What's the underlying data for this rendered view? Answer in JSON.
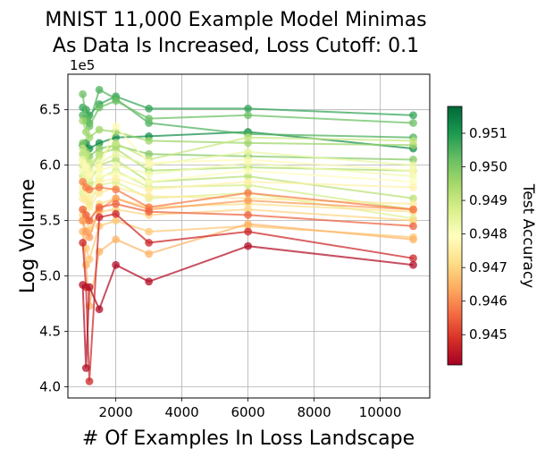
{
  "chart_data": {
    "type": "line",
    "title": [
      "MNIST 11,000 Example Model Minimas",
      "As Data Is Increased, Loss Cutoff: 0.1"
    ],
    "xlabel": "# Of Examples In Loss Landscape",
    "ylabel": "Log Volume",
    "y_offset_label": "1e5",
    "xlim": [
      550,
      11500
    ],
    "ylim": [
      3.9,
      6.82
    ],
    "x_ticks": [
      2000,
      4000,
      6000,
      8000,
      10000
    ],
    "x_tick_labels": [
      "2000",
      "4000",
      "6000",
      "8000",
      "10000"
    ],
    "y_ticks": [
      4.0,
      4.5,
      5.0,
      5.5,
      6.0,
      6.5
    ],
    "y_tick_labels": [
      "4.0",
      "4.5",
      "5.0",
      "5.5",
      "6.0",
      "6.5"
    ],
    "grid": true,
    "colorbar": {
      "label": "Test Accuracy",
      "range": [
        0.9441,
        0.9518
      ],
      "colormap": [
        "#a50026",
        "#d73027",
        "#f46d43",
        "#fdae61",
        "#fee08b",
        "#ffffbf",
        "#d9ef8b",
        "#a6d96a",
        "#66bd63",
        "#1a9850",
        "#006837"
      ],
      "ticks": [
        0.945,
        0.946,
        0.947,
        0.948,
        0.949,
        0.95,
        0.951
      ],
      "tick_labels": [
        "0.945",
        "0.946",
        "0.947",
        "0.948",
        "0.949",
        "0.950",
        "0.951"
      ]
    },
    "x": [
      1000,
      1100,
      1200,
      1500,
      2000,
      3000,
      6000,
      11000
    ],
    "series": [
      {
        "accuracy": 0.9512,
        "y": [
          6.18,
          6.2,
          6.15,
          6.2,
          6.25,
          6.26,
          6.3,
          6.15
        ]
      },
      {
        "accuracy": 0.9508,
        "y": [
          6.52,
          6.5,
          6.45,
          6.55,
          6.62,
          6.51,
          6.51,
          6.45
        ]
      },
      {
        "accuracy": 0.9505,
        "y": [
          6.45,
          6.42,
          6.38,
          6.68,
          6.6,
          6.38,
          6.28,
          6.25
        ]
      },
      {
        "accuracy": 0.9502,
        "y": [
          6.64,
          6.4,
          6.35,
          6.52,
          6.58,
          6.42,
          6.45,
          6.38
        ]
      },
      {
        "accuracy": 0.9499,
        "y": [
          6.2,
          6.12,
          6.08,
          6.15,
          6.18,
          6.1,
          6.08,
          6.05
        ]
      },
      {
        "accuracy": 0.9496,
        "y": [
          6.4,
          6.3,
          6.25,
          6.32,
          6.3,
          6.22,
          6.2,
          6.18
        ]
      },
      {
        "accuracy": 0.9494,
        "y": [
          6.1,
          6.05,
          5.95,
          6.1,
          6.15,
          5.95,
          5.98,
          5.95
        ]
      },
      {
        "accuracy": 0.9492,
        "y": [
          6.0,
          5.92,
          5.85,
          6.0,
          6.05,
          5.85,
          5.9,
          5.7
        ]
      },
      {
        "accuracy": 0.949,
        "y": [
          6.15,
          6.1,
          6.02,
          6.08,
          6.2,
          6.05,
          6.25,
          6.22
        ]
      },
      {
        "accuracy": 0.9488,
        "y": [
          5.9,
          5.85,
          5.8,
          5.88,
          5.95,
          5.8,
          5.82,
          5.6
        ]
      },
      {
        "accuracy": 0.9486,
        "y": [
          5.75,
          5.7,
          5.65,
          5.82,
          5.85,
          5.7,
          5.75,
          5.52
        ]
      },
      {
        "accuracy": 0.9484,
        "y": [
          6.05,
          6.0,
          5.95,
          6.02,
          6.1,
          6.0,
          6.12,
          6.0
        ]
      },
      {
        "accuracy": 0.9482,
        "y": [
          5.95,
          5.9,
          5.88,
          5.95,
          6.0,
          5.92,
          6.02,
          5.9
        ]
      },
      {
        "accuracy": 0.948,
        "y": [
          5.85,
          5.8,
          5.75,
          5.9,
          5.92,
          5.85,
          5.95,
          5.85
        ]
      },
      {
        "accuracy": 0.9478,
        "y": [
          6.02,
          5.98,
          5.92,
          5.98,
          6.35,
          6.02,
          6.05,
          5.95
        ]
      },
      {
        "accuracy": 0.9476,
        "y": [
          5.8,
          5.75,
          5.7,
          5.85,
          5.88,
          5.78,
          5.85,
          5.8
        ]
      },
      {
        "accuracy": 0.9474,
        "y": [
          5.7,
          5.68,
          5.62,
          5.75,
          5.8,
          5.72,
          5.7,
          5.65
        ]
      },
      {
        "accuracy": 0.9472,
        "y": [
          5.6,
          5.55,
          5.5,
          5.65,
          5.7,
          5.62,
          5.65,
          5.58
        ]
      },
      {
        "accuracy": 0.947,
        "y": [
          5.55,
          5.5,
          5.42,
          5.58,
          5.6,
          5.55,
          5.6,
          5.5
        ]
      },
      {
        "accuracy": 0.9468,
        "y": [
          5.5,
          5.25,
          5.15,
          5.45,
          5.5,
          5.4,
          5.45,
          5.35
        ]
      },
      {
        "accuracy": 0.9465,
        "y": [
          5.4,
          5.1,
          4.73,
          5.22,
          5.33,
          5.2,
          5.47,
          5.33
        ]
      },
      {
        "accuracy": 0.9462,
        "y": [
          5.5,
          5.4,
          5.35,
          5.6,
          5.7,
          5.6,
          5.68,
          5.6
        ]
      },
      {
        "accuracy": 0.9458,
        "y": [
          5.85,
          5.8,
          5.78,
          5.8,
          5.78,
          5.62,
          5.75,
          5.6
        ]
      },
      {
        "accuracy": 0.9455,
        "y": [
          5.6,
          5.55,
          5.5,
          5.62,
          5.65,
          5.58,
          5.55,
          5.45
        ]
      },
      {
        "accuracy": 0.9447,
        "y": [
          5.3,
          4.9,
          4.05,
          5.53,
          5.56,
          5.3,
          5.4,
          5.16
        ]
      },
      {
        "accuracy": 0.9443,
        "y": [
          4.92,
          4.17,
          4.9,
          4.7,
          5.1,
          4.95,
          5.27,
          5.1
        ]
      }
    ]
  }
}
